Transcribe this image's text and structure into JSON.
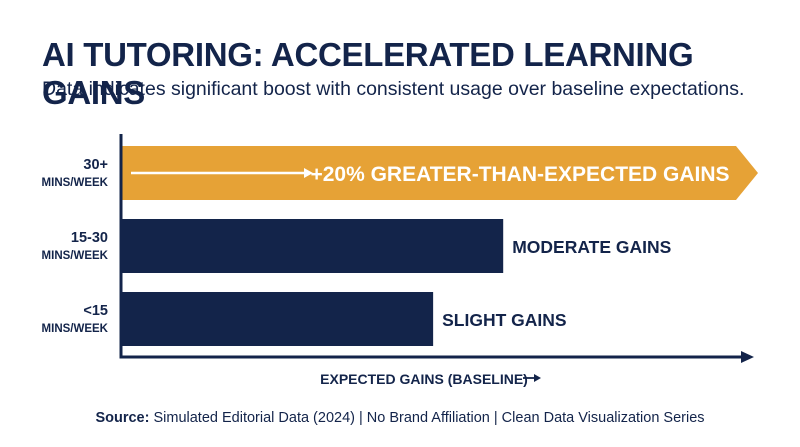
{
  "header": {
    "title": "AI TUTORING: ACCELERATED LEARNING GAINS",
    "subtitle": "Data indicates significant boost with consistent usage over baseline expectations."
  },
  "footer": {
    "source_label": "Source:",
    "source_text": "Simulated Editorial Data (2024) | No Brand Affiliation | Clean Data Visualization Series"
  },
  "colors": {
    "navy": "#13244a",
    "gold": "#e6a236",
    "white": "#ffffff"
  },
  "chart_data": {
    "type": "bar",
    "orientation": "horizontal",
    "title": "AI TUTORING: ACCELERATED LEARNING GAINS",
    "subtitle": "Data indicates significant boost with consistent usage over baseline expectations.",
    "xlabel": "EXPECTED GAINS (BASELINE)",
    "ylabel": "",
    "xlim": [
      0,
      100
    ],
    "grid": false,
    "categories": [
      {
        "line1": "30+",
        "line2": "MINS/WEEK"
      },
      {
        "line1": "15-30",
        "line2": "MINS/WEEK"
      },
      {
        "line1": "<15",
        "line2": "MINS/WEEK"
      }
    ],
    "values": [
      100,
      60,
      49
    ],
    "bar_labels": [
      "+20% GREATER-THAN-EXPECTED GAINS",
      "MODERATE GAINS",
      "SLIGHT GAINS"
    ],
    "highlight_index": 0,
    "bar_colors": [
      "#e6a236",
      "#13244a",
      "#13244a"
    ]
  }
}
